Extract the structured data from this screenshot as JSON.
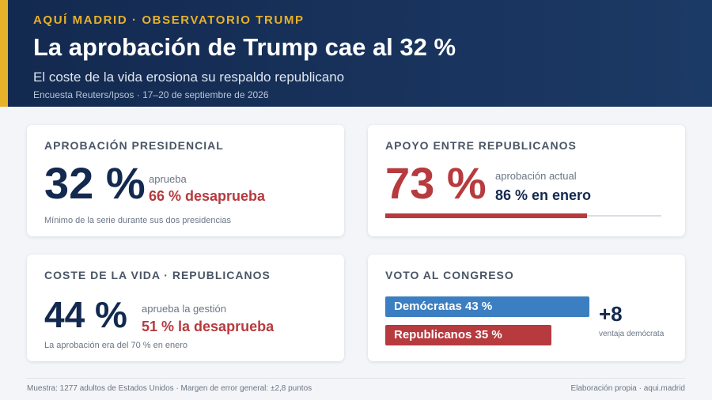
{
  "header": {
    "kicker": "AQUÍ MADRID · OBSERVATORIO TRUMP",
    "title": "La aprobación de Trump cae al 32 %",
    "subtitle": "El coste de la vida erosiona su respaldo republicano",
    "source": "Encuesta Reuters/Ipsos · 17–20 de septiembre de 2026"
  },
  "cards": {
    "approval": {
      "title": "APROBACIÓN PRESIDENCIAL",
      "value": "32 %",
      "approve_label": "aprueba",
      "disapprove_label": "66 % desaprueba",
      "note": "Mínimo de la serie durante sus dos presidencias"
    },
    "republicans": {
      "title": "APOYO ENTRE REPUBLICANOS",
      "value": "73 %",
      "current_label": "aprobación actual",
      "january_label": "86 % en enero"
    },
    "cost": {
      "title": "COSTE DE LA VIDA · REPUBLICANOS",
      "value": "44 %",
      "approve_label": "aprueba la gestión",
      "disapprove_label": "51 % la desaprueba",
      "note": "La aprobación era del 70 % en enero"
    },
    "congress": {
      "title": "VOTO AL CONGRESO",
      "margin": "+8",
      "margin_label": "ventaja demócrata"
    }
  },
  "chart_data": [
    {
      "type": "bar",
      "categories": [
        "aprobación actual"
      ],
      "values": [
        73
      ],
      "ylim": [
        0,
        100
      ]
    },
    {
      "type": "bar",
      "categories": [
        "Demócratas",
        "Republicanos"
      ],
      "values": [
        43,
        35
      ],
      "labels": [
        "Demócratas 43 %",
        "Republicanos 35 %"
      ],
      "colors": [
        "#3b7ec1",
        "#b63a3e"
      ]
    }
  ],
  "footer": {
    "left": "Muestra: 1277 adultos de Estados Unidos · Margen de error general: ±2,8 puntos",
    "right": "Elaboración propia · aqui.madrid"
  },
  "colors": {
    "navy": "#13294f",
    "gold": "#e8b12a",
    "red": "#b63a3e",
    "blue": "#3b7ec1"
  }
}
